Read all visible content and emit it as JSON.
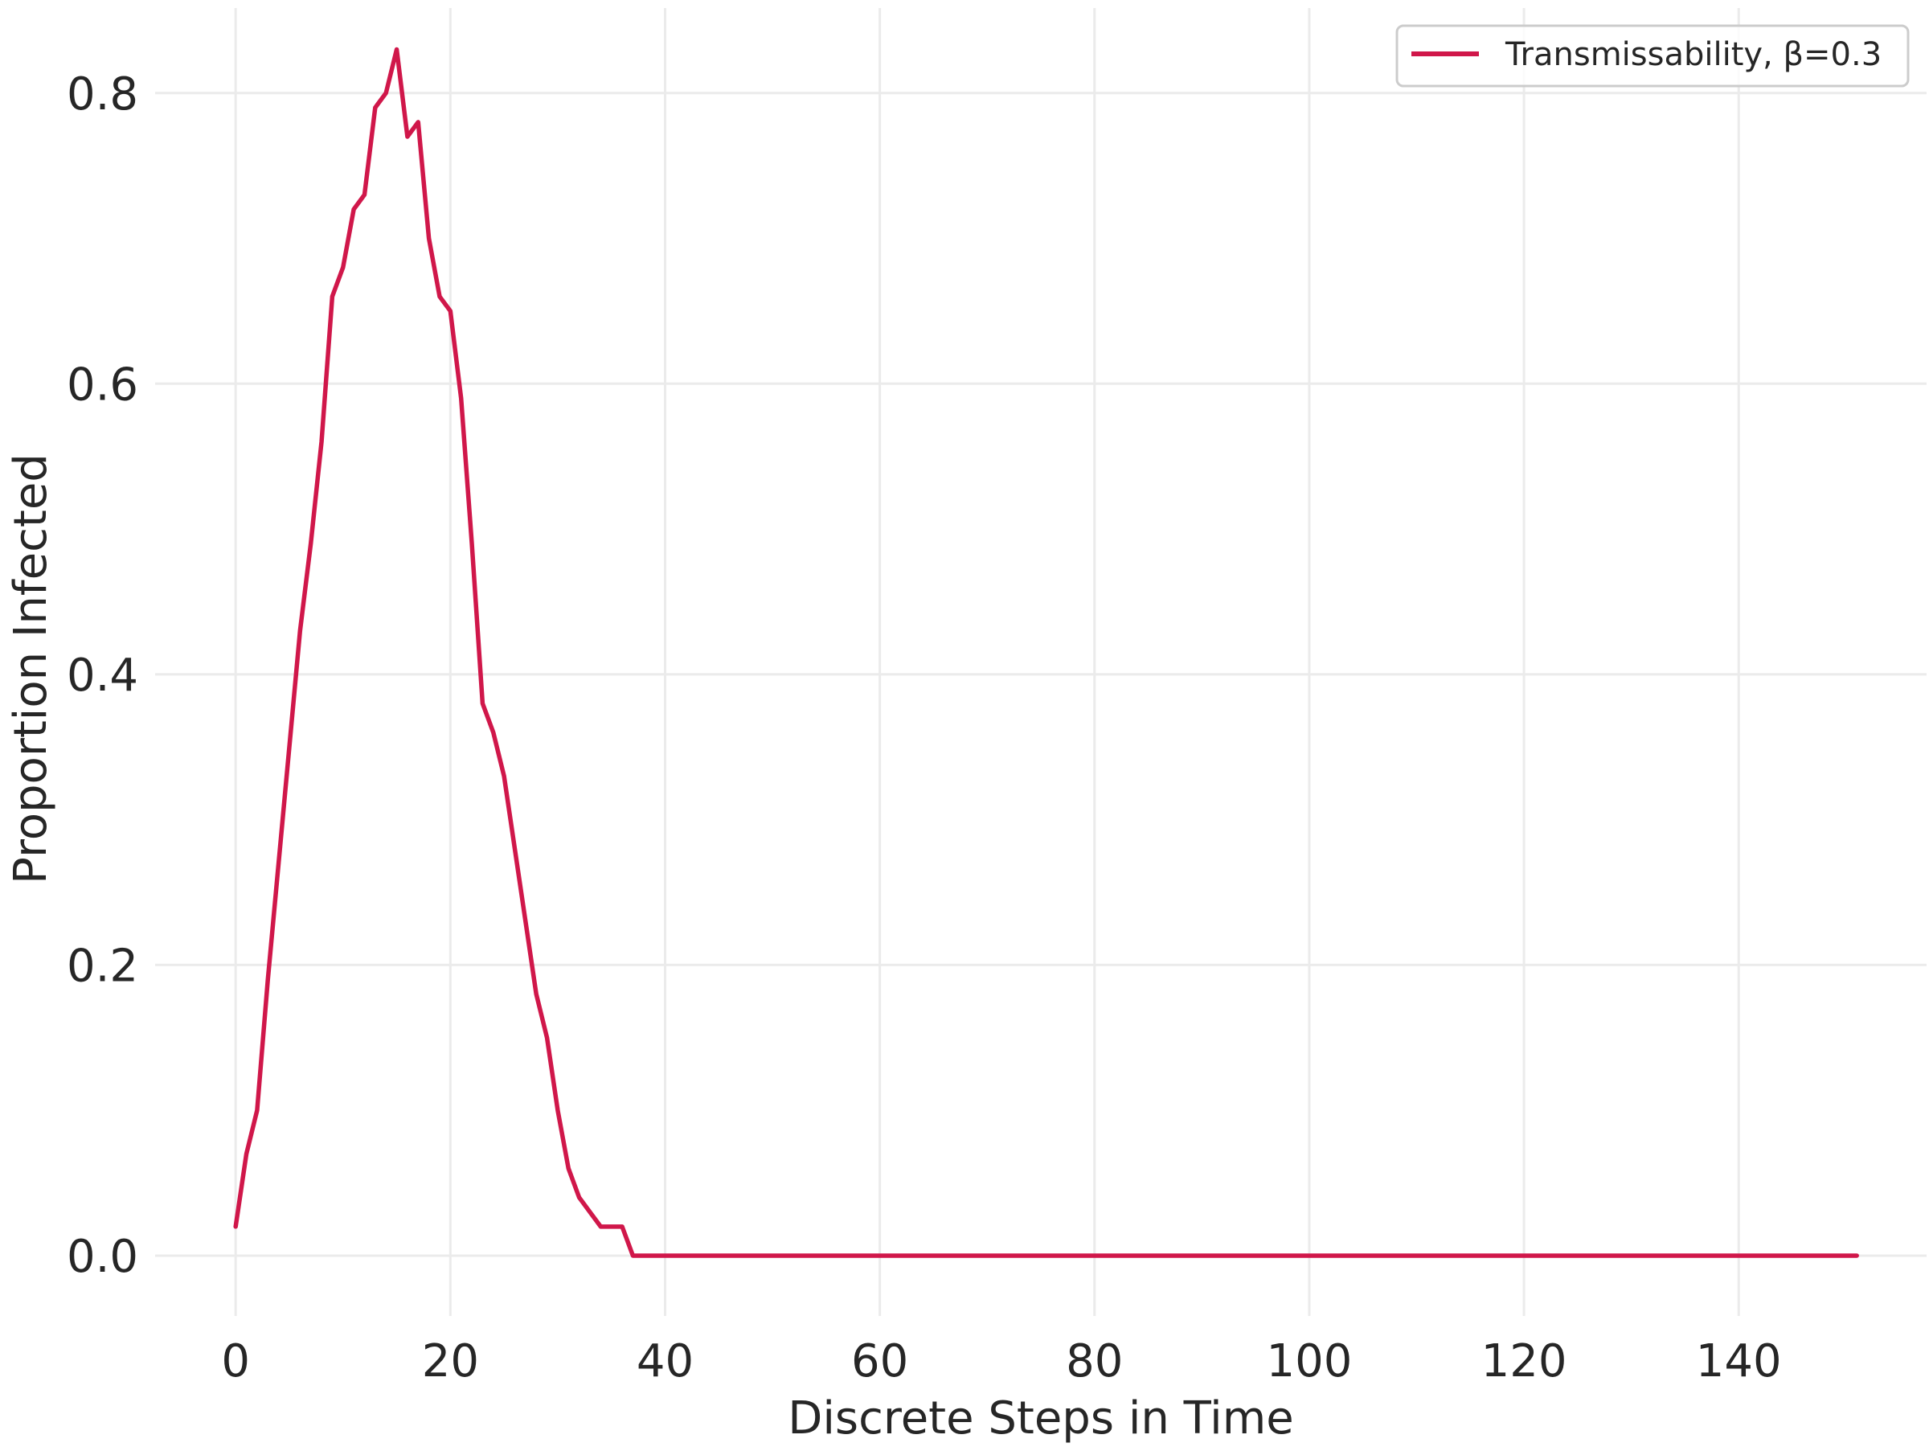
{
  "chart_data": {
    "type": "line",
    "title": "",
    "xlabel": "Discrete Steps in Time",
    "ylabel": "Proportion Infected",
    "xlim": [
      -7.5,
      157.5
    ],
    "ylim": [
      -0.0415,
      0.8585
    ],
    "xticks": [
      0,
      20,
      40,
      60,
      80,
      100,
      120,
      140
    ],
    "xtick_labels": [
      "0",
      "20",
      "40",
      "60",
      "80",
      "100",
      "120",
      "140"
    ],
    "yticks": [
      0.0,
      0.2,
      0.4,
      0.6,
      0.8
    ],
    "ytick_labels": [
      "0.0",
      "0.2",
      "0.4",
      "0.6",
      "0.8"
    ],
    "grid": true,
    "legend_position": "top-right",
    "series": [
      {
        "name": "Transmissability, β=0.3",
        "color": "#d0174a",
        "x_start": 0,
        "x_step": 1,
        "values": [
          0.02,
          0.07,
          0.1,
          0.19,
          0.27,
          0.35,
          0.43,
          0.49,
          0.56,
          0.66,
          0.68,
          0.72,
          0.73,
          0.79,
          0.8,
          0.83,
          0.77,
          0.78,
          0.7,
          0.66,
          0.65,
          0.59,
          0.49,
          0.38,
          0.36,
          0.33,
          0.28,
          0.23,
          0.18,
          0.15,
          0.1,
          0.06,
          0.04,
          0.03,
          0.02,
          0.02,
          0.02,
          0.0,
          0,
          0,
          0,
          0,
          0,
          0,
          0,
          0,
          0,
          0,
          0,
          0,
          0,
          0,
          0,
          0,
          0,
          0,
          0,
          0,
          0,
          0,
          0,
          0,
          0,
          0,
          0,
          0,
          0,
          0,
          0,
          0,
          0,
          0,
          0,
          0,
          0,
          0,
          0,
          0,
          0,
          0,
          0,
          0,
          0,
          0,
          0,
          0,
          0,
          0,
          0,
          0,
          0,
          0,
          0,
          0,
          0,
          0,
          0,
          0,
          0,
          0,
          0,
          0,
          0,
          0,
          0,
          0,
          0,
          0,
          0,
          0,
          0,
          0,
          0,
          0,
          0,
          0,
          0,
          0,
          0,
          0,
          0,
          0,
          0,
          0,
          0,
          0,
          0,
          0,
          0,
          0,
          0,
          0,
          0,
          0,
          0,
          0,
          0,
          0,
          0,
          0,
          0,
          0,
          0,
          0,
          0,
          0,
          0,
          0,
          0,
          0,
          0,
          0
        ]
      }
    ]
  }
}
